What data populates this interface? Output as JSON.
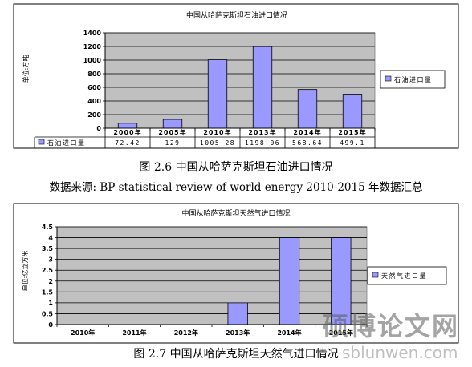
{
  "chart_data": [
    {
      "type": "bar",
      "title": "中国从哈萨克斯坦石油进口情况",
      "ylabel": "单位:万吨",
      "categories": [
        "2000年",
        "2005年",
        "2010年",
        "2013年",
        "2014年",
        "2015年"
      ],
      "series": [
        {
          "name": "石油进口量",
          "values": [
            72.42,
            129,
            1005.28,
            1198.06,
            568.64,
            499.1
          ]
        }
      ],
      "data_labels": [
        "72.42",
        "129",
        "1005.28",
        "1198.06",
        "568.64",
        "499.1"
      ],
      "ylim": [
        0,
        1400
      ],
      "yticks": [
        0,
        200,
        400,
        600,
        800,
        1000,
        1200,
        1400
      ],
      "ytick_labels": [
        "0",
        "200",
        "400",
        "600",
        "800",
        "1000",
        "1200",
        "1400"
      ],
      "grid": true,
      "legend": "right",
      "data_table": true,
      "colors": {
        "bar": "#9999ff",
        "plot_bg": "#c0c0c0",
        "border": "#000000"
      }
    },
    {
      "type": "bar",
      "title": "中国从哈萨克斯坦天然气进口情况",
      "ylabel": "单位:亿立方米",
      "categories": [
        "2010年",
        "2011年",
        "2012年",
        "2013年",
        "2014年",
        "2015年"
      ],
      "series": [
        {
          "name": "天然气进口量",
          "values": [
            0,
            0,
            0,
            1,
            4,
            4
          ]
        }
      ],
      "ylim": [
        0,
        4.5
      ],
      "yticks": [
        0,
        0.5,
        1,
        1.5,
        2,
        2.5,
        3,
        3.5,
        4,
        4.5
      ],
      "ytick_labels": [
        "0",
        "0.5",
        "1",
        "1.5",
        "2",
        "2.5",
        "3",
        "3.5",
        "4",
        "4.5"
      ],
      "grid": true,
      "legend": "right",
      "colors": {
        "bar": "#9999ff",
        "plot_bg": "#c0c0c0",
        "border": "#000000"
      }
    }
  ],
  "captions": {
    "fig1": "图 2.6 中国从哈萨克斯坦石油进口情况",
    "source": "数据来源: BP statistical review of world energy 2010-2015 年数据汇总",
    "fig2": "图 2.7 中国从哈萨克斯坦天然气进口情况"
  },
  "watermark": {
    "text": "硕博论文网",
    "url": "sblunwen.com"
  }
}
